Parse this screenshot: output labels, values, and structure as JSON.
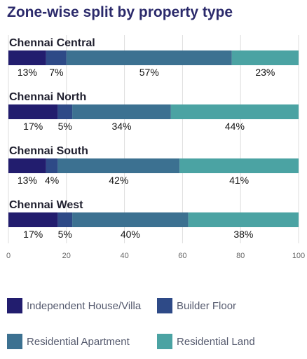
{
  "title": "Zone-wise split by property type",
  "chart_data": {
    "type": "bar",
    "orientation": "horizontal",
    "stacked": true,
    "categories": [
      "Chennai Central",
      "Chennai North",
      "Chennai South",
      "Chennai West"
    ],
    "series": [
      {
        "name": "Independent House/Villa",
        "color": "#221d6e",
        "values": [
          13,
          17,
          13,
          17
        ],
        "labels": [
          "13%",
          "17%",
          "13%",
          "17%"
        ]
      },
      {
        "name": "Builder Floor",
        "color": "#2e4a87",
        "values": [
          7,
          5,
          4,
          5
        ],
        "labels": [
          "7%",
          "5%",
          "4%",
          "5%"
        ]
      },
      {
        "name": "Residential Apartment",
        "color": "#3c7191",
        "values": [
          57,
          34,
          42,
          40
        ],
        "labels": [
          "57%",
          "34%",
          "42%",
          "40%"
        ]
      },
      {
        "name": "Residential Land",
        "color": "#4ba3a3",
        "values": [
          23,
          44,
          41,
          38
        ],
        "labels": [
          "23%",
          "44%",
          "41%",
          "38%"
        ]
      }
    ],
    "xlim": [
      0,
      100
    ],
    "xticks": [
      0,
      20,
      40,
      60,
      80,
      100
    ],
    "xtick_labels": [
      "0",
      "20",
      "40",
      "60",
      "80",
      "100"
    ],
    "grid": true,
    "legend_position": "bottom"
  }
}
